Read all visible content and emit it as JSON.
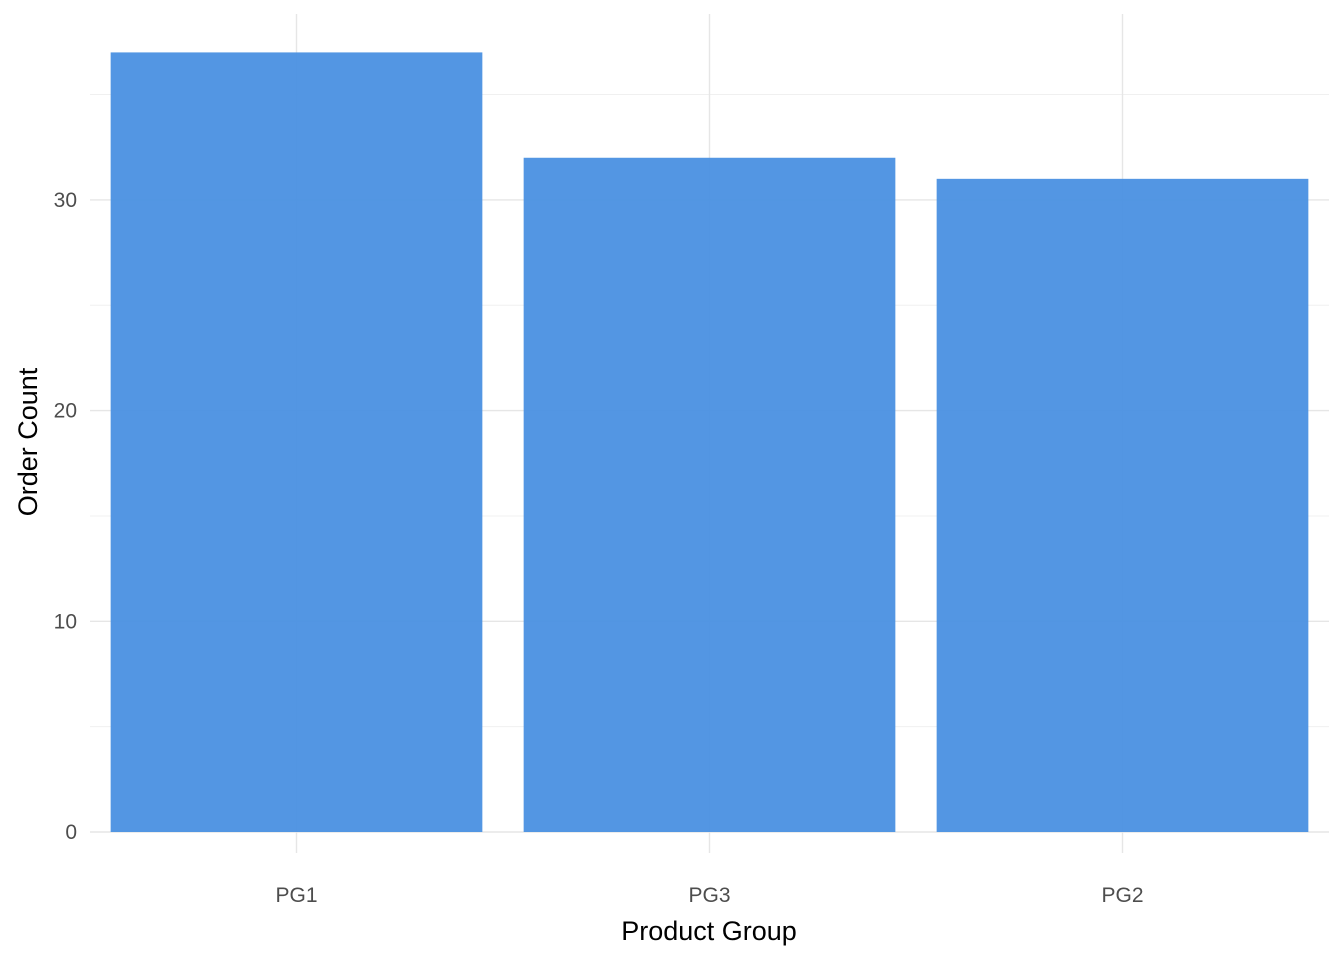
{
  "chart_data": {
    "type": "bar",
    "categories": [
      "PG1",
      "PG3",
      "PG2"
    ],
    "values": [
      37,
      32,
      31
    ],
    "title": "",
    "xlabel": "Product Group",
    "ylabel": "Order Count",
    "ylim": [
      0,
      38.85
    ],
    "yticks": [
      0,
      10,
      20,
      30
    ],
    "y_minor_ticks": [
      5,
      15,
      25,
      35
    ],
    "grid": true,
    "legend": "none",
    "bar_color": "#4a90e2"
  }
}
